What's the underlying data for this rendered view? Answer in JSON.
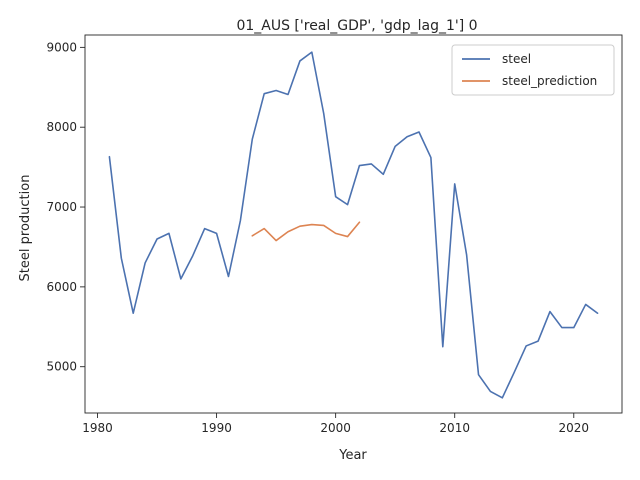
{
  "chart_data": {
    "type": "line",
    "title": "01_AUS ['real_GDP', 'gdp_lag_1'] 0",
    "xlabel": "Year",
    "ylabel": "Steel production",
    "xlim": [
      1978.95,
      2024.05
    ],
    "ylim": [
      4420,
      9155
    ],
    "xticks": [
      1980,
      1990,
      2000,
      2010,
      2020
    ],
    "yticks": [
      5000,
      6000,
      7000,
      8000,
      9000
    ],
    "grid": false,
    "legend_position": "top-right",
    "series": [
      {
        "name": "steel",
        "color": "#4c72b0",
        "x": [
          1981,
          1982,
          1983,
          1984,
          1985,
          1986,
          1987,
          1988,
          1989,
          1990,
          1991,
          1992,
          1993,
          1994,
          1995,
          1996,
          1997,
          1998,
          1999,
          2000,
          2001,
          2002,
          2003,
          2004,
          2005,
          2006,
          2007,
          2008,
          2009,
          2010,
          2011,
          2012,
          2013,
          2014,
          2015,
          2016,
          2017,
          2018,
          2019,
          2020,
          2021,
          2022
        ],
        "y": [
          7630,
          6360,
          5670,
          6300,
          6600,
          6670,
          6100,
          6390,
          6730,
          6670,
          6130,
          6830,
          7850,
          8420,
          8460,
          8410,
          8830,
          8940,
          8170,
          7130,
          7030,
          7520,
          7540,
          7410,
          7760,
          7880,
          7940,
          7620,
          5250,
          7290,
          6400,
          4900,
          4690,
          4610,
          4930,
          5260,
          5320,
          5690,
          5490,
          5490,
          5780,
          5670
        ]
      },
      {
        "name": "steel_prediction",
        "color": "#dd8452",
        "x": [
          1993,
          1994,
          1995,
          1996,
          1997,
          1998,
          1999,
          2000,
          2001,
          2002
        ],
        "y": [
          6640,
          6730,
          6580,
          6690,
          6760,
          6780,
          6770,
          6670,
          6630,
          6810
        ]
      }
    ]
  }
}
